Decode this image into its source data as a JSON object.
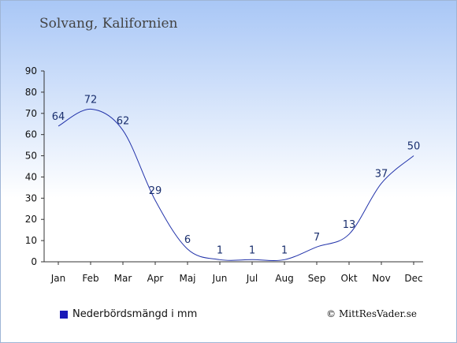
{
  "header": {
    "title": "Solvang, Kalifornien"
  },
  "legend": {
    "label": "Nederbördsmängd i mm",
    "color": "#1a1ab8"
  },
  "credit": "© MittResVader.se",
  "chart_data": {
    "type": "line",
    "categories": [
      "Jan",
      "Feb",
      "Mar",
      "Apr",
      "Maj",
      "Jun",
      "Jul",
      "Aug",
      "Sep",
      "Okt",
      "Nov",
      "Dec"
    ],
    "values": [
      64,
      72,
      62,
      29,
      6,
      1,
      1,
      1,
      7,
      13,
      37,
      50
    ],
    "ylim": [
      0,
      90
    ],
    "yticks": [
      0,
      10,
      20,
      30,
      40,
      50,
      60,
      70,
      80,
      90
    ],
    "line_color": "#2233aa",
    "grid": false,
    "legend_placement": "bottom-left"
  }
}
